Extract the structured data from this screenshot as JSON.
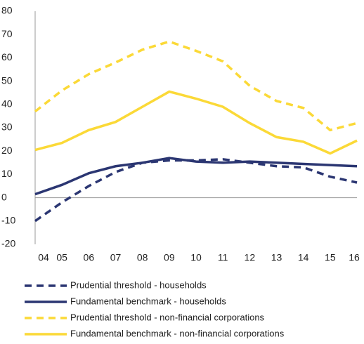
{
  "chart_data": {
    "type": "line",
    "categories": [
      "04",
      "05",
      "06",
      "07",
      "08",
      "09",
      "10",
      "11",
      "12",
      "13",
      "14",
      "15",
      "16"
    ],
    "series": [
      {
        "name": "Prudential threshold - households",
        "color": "#2b3672",
        "line_style": "dashed",
        "values": [
          -10,
          -2,
          5,
          11,
          15,
          16,
          16,
          16.5,
          15,
          13.5,
          13,
          9,
          6.5
        ]
      },
      {
        "name": "Fundamental benchmark - households",
        "color": "#2b3672",
        "line_style": "solid",
        "values": [
          1.5,
          5.5,
          10.5,
          13.5,
          15,
          17,
          15.5,
          15,
          15.5,
          15,
          14.5,
          14,
          13.5
        ]
      },
      {
        "name": "Prudential threshold - non-financial corporations",
        "color": "#fbd937",
        "line_style": "dashed",
        "values": [
          37,
          46,
          53,
          58,
          63.5,
          67,
          63,
          58.5,
          48,
          41.5,
          38.5,
          29,
          32
        ]
      },
      {
        "name": "Fundamental benchmark - non-financial corporations",
        "color": "#fbd937",
        "line_style": "solid",
        "values": [
          20.5,
          23.5,
          29,
          32.5,
          39,
          45.5,
          42.5,
          39,
          32,
          26,
          24,
          19,
          24.5
        ]
      }
    ],
    "ylim": [
      -20,
      80
    ],
    "yticks": [
      -20,
      -10,
      0,
      10,
      20,
      30,
      40,
      50,
      60,
      70,
      80
    ],
    "legend": "bottom",
    "grid": false
  }
}
